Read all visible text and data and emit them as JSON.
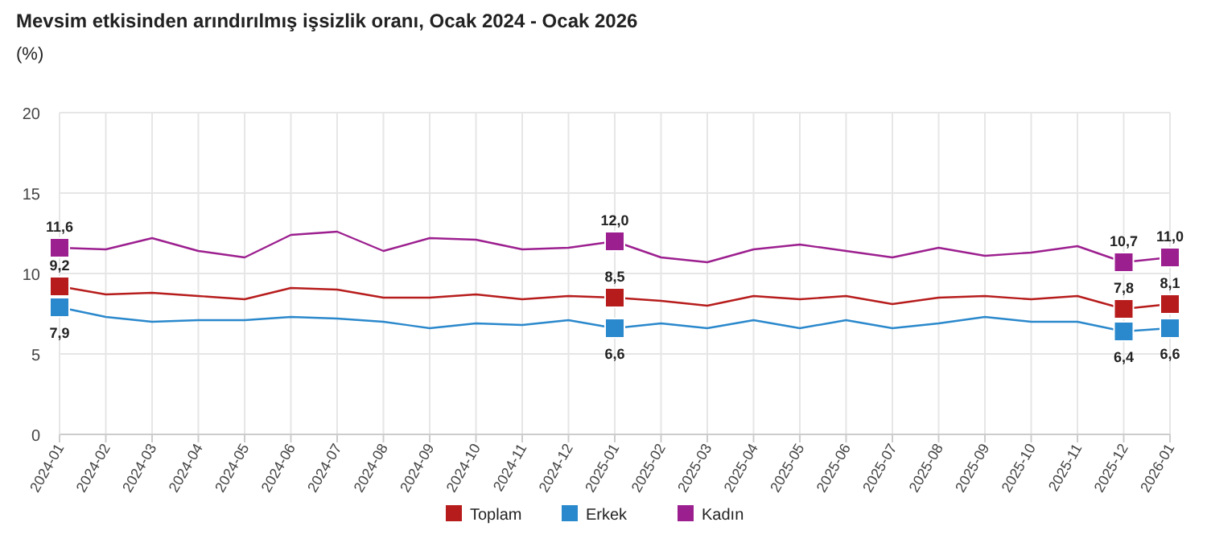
{
  "chart_data": {
    "type": "line",
    "title": "Mevsim etkisinden arındırılmış işsizlik oranı, Ocak 2024 - Ocak 2026",
    "subtitle": "(%)",
    "categories": [
      "2024-01",
      "2024-02",
      "2024-03",
      "2024-04",
      "2024-05",
      "2024-06",
      "2024-07",
      "2024-08",
      "2024-09",
      "2024-10",
      "2024-11",
      "2024-12",
      "2025-01",
      "2025-02",
      "2025-03",
      "2025-04",
      "2025-05",
      "2025-06",
      "2025-07",
      "2025-08",
      "2025-09",
      "2025-10",
      "2025-11",
      "2025-12",
      "2026-01"
    ],
    "series": [
      {
        "name": "Toplam",
        "color": "#b71c1c",
        "values": [
          9.2,
          8.7,
          8.8,
          8.6,
          8.4,
          9.1,
          9.0,
          8.5,
          8.5,
          8.7,
          8.4,
          8.6,
          8.5,
          8.3,
          8.0,
          8.6,
          8.4,
          8.6,
          8.1,
          8.5,
          8.6,
          8.4,
          8.6,
          7.8,
          8.1
        ],
        "value_labels": [
          "9,2",
          null,
          null,
          null,
          null,
          null,
          null,
          null,
          null,
          null,
          null,
          null,
          "8,5",
          null,
          null,
          null,
          null,
          null,
          null,
          null,
          null,
          null,
          null,
          "7,8",
          "8,1"
        ]
      },
      {
        "name": "Erkek",
        "color": "#2a88cc",
        "values": [
          7.9,
          7.3,
          7.0,
          7.1,
          7.1,
          7.3,
          7.2,
          7.0,
          6.6,
          6.9,
          6.8,
          7.1,
          6.6,
          6.9,
          6.6,
          7.1,
          6.6,
          7.1,
          6.6,
          6.9,
          7.3,
          7.0,
          7.0,
          6.4,
          6.6
        ],
        "value_labels": [
          "7,9",
          null,
          null,
          null,
          null,
          null,
          null,
          null,
          null,
          null,
          null,
          null,
          "6,6",
          null,
          null,
          null,
          null,
          null,
          null,
          null,
          null,
          null,
          null,
          "6,4",
          "6,6"
        ]
      },
      {
        "name": "Kadın",
        "color": "#9c1f8f",
        "values": [
          11.6,
          11.5,
          12.2,
          11.4,
          11.0,
          12.4,
          12.6,
          11.4,
          12.2,
          12.1,
          11.5,
          11.6,
          12.0,
          11.0,
          10.7,
          11.5,
          11.8,
          11.4,
          11.0,
          11.6,
          11.1,
          11.3,
          11.7,
          10.7,
          11.0
        ],
        "value_labels": [
          "11,6",
          null,
          null,
          null,
          null,
          null,
          null,
          null,
          null,
          null,
          null,
          null,
          "12,0",
          null,
          null,
          null,
          null,
          null,
          null,
          null,
          null,
          null,
          null,
          "10,7",
          "11,0"
        ]
      }
    ],
    "ylim": [
      0,
      20
    ],
    "yticks": [
      0,
      5,
      10,
      15,
      20
    ],
    "grid": true,
    "legend": "bottom",
    "line_style": "solid"
  }
}
